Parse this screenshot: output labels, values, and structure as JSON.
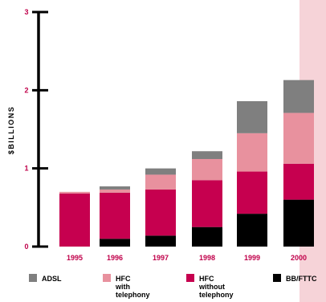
{
  "chart_data": {
    "type": "bar",
    "stacked": true,
    "categories": [
      "1995",
      "1996",
      "1997",
      "1998",
      "1999",
      "2000"
    ],
    "series": [
      {
        "name": "BB/FTTC",
        "color": "#000000",
        "values": [
          0.0,
          0.1,
          0.14,
          0.25,
          0.42,
          0.6
        ]
      },
      {
        "name": "HFC without telephony",
        "color": "#c6004f",
        "values": [
          0.68,
          0.59,
          0.59,
          0.6,
          0.54,
          0.46
        ]
      },
      {
        "name": "HFC with telephony",
        "color": "#e8919e",
        "values": [
          0.02,
          0.04,
          0.19,
          0.27,
          0.49,
          0.65
        ]
      },
      {
        "name": "ADSL",
        "color": "#7f7f7f",
        "values": [
          0.0,
          0.04,
          0.08,
          0.1,
          0.41,
          0.42
        ]
      }
    ],
    "ylabel": "$BILLIONS",
    "ylim": [
      0,
      3
    ],
    "yticks": [
      "0",
      "1",
      "2",
      "3"
    ],
    "highlight_category": "2000",
    "highlight_color": "#f6d3d8",
    "tick_color": "#c0004a",
    "legend": [
      {
        "lines": [
          "ADSL"
        ],
        "color": "#7f7f7f"
      },
      {
        "lines": [
          "HFC",
          "with",
          "telephony"
        ],
        "color": "#e8919e"
      },
      {
        "lines": [
          "HFC",
          "without",
          "telephony"
        ],
        "color": "#c6004f"
      },
      {
        "lines": [
          "BB/FTTC"
        ],
        "color": "#000000"
      }
    ],
    "legend_position": "bottom"
  }
}
